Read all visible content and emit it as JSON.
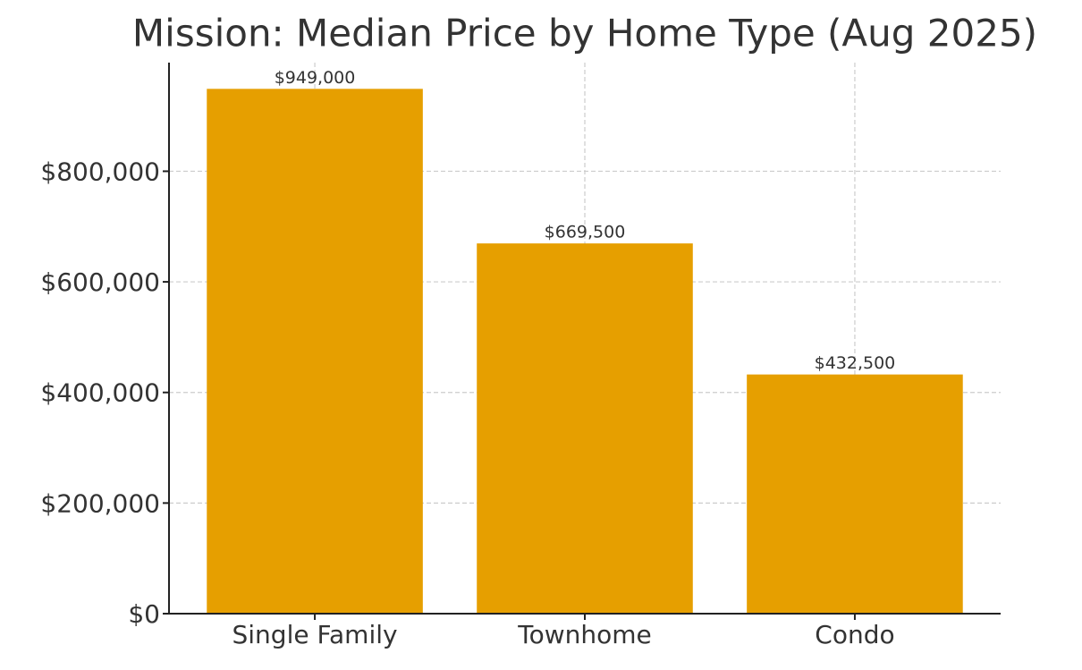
{
  "chart_data": {
    "type": "bar",
    "title": "Mission: Median Price by Home Type (Aug 2025)",
    "categories": [
      "Single Family",
      "Townhome",
      "Condo"
    ],
    "values": [
      949000,
      669500,
      432500
    ],
    "value_labels": [
      "$949,000",
      "$669,500",
      "$432,500"
    ],
    "color": "#e69f00",
    "ylim": [
      0,
      996450
    ],
    "yticks": [
      {
        "value": 0,
        "label": "$0"
      },
      {
        "value": 200000,
        "label": "$200,000"
      },
      {
        "value": 400000,
        "label": "$400,000"
      },
      {
        "value": 600000,
        "label": "$600,000"
      },
      {
        "value": 800000,
        "label": "$800,000"
      }
    ],
    "grid": true
  }
}
